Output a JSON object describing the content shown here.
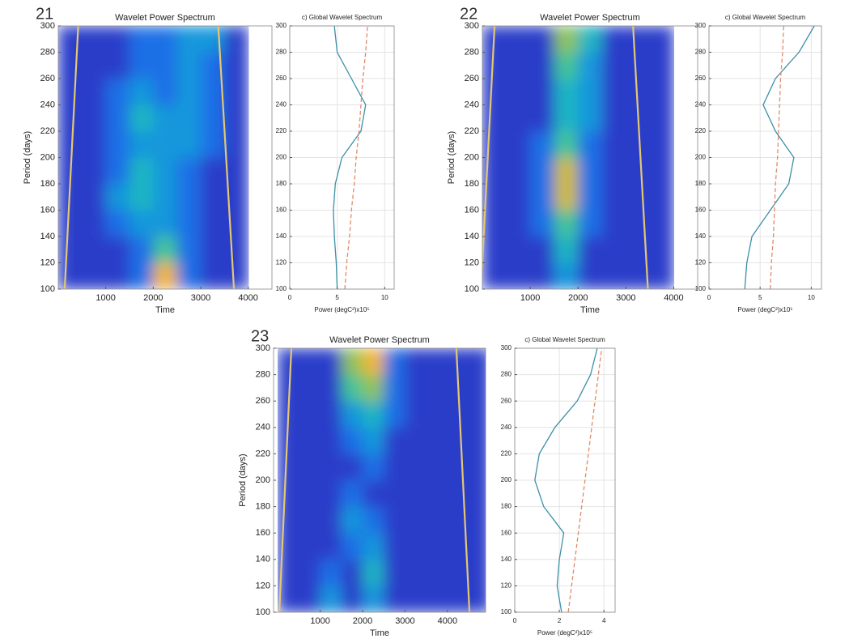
{
  "chart_data": [
    {
      "type": "heatmap",
      "panel_label": "21",
      "title": "Wavelet Power Spectrum",
      "xlabel": "Time",
      "ylabel": "Period (days)",
      "xlim": [
        0,
        4500
      ],
      "ylim": [
        100,
        300
      ],
      "xticks": [
        1000,
        2000,
        3000,
        4000
      ],
      "yticks": [
        100,
        120,
        140,
        160,
        180,
        200,
        220,
        240,
        260,
        280,
        300
      ],
      "zlim": [
        0,
        10
      ],
      "colormap": [
        "#2b1e8c",
        "#2a3cc9",
        "#1e6fe6",
        "#1597dc",
        "#1db5c3",
        "#44c597",
        "#8fc35a",
        "#cfbb36",
        "#f2b62a",
        "#f9a61e",
        "#f57f16"
      ],
      "x": [
        250,
        750,
        1250,
        1750,
        2250,
        2750,
        3250,
        3750,
        4250
      ],
      "y": [
        110,
        130,
        150,
        170,
        190,
        210,
        230,
        250,
        270,
        290
      ],
      "z": [
        [
          1,
          1,
          1,
          2,
          8,
          2,
          1,
          1,
          null
        ],
        [
          1,
          1,
          1,
          2,
          5,
          2,
          1,
          1,
          null
        ],
        [
          1,
          1,
          2,
          3,
          3,
          2,
          1,
          1,
          null
        ],
        [
          1,
          1,
          3,
          4,
          3,
          2,
          1,
          1,
          null
        ],
        [
          1,
          1,
          2,
          4,
          3,
          2,
          1,
          1,
          null
        ],
        [
          1,
          1,
          2,
          3,
          3,
          3,
          2,
          1,
          null
        ],
        [
          1,
          1,
          2,
          4,
          3,
          3,
          2,
          1,
          null
        ],
        [
          1,
          1,
          2,
          3,
          2,
          3,
          2,
          1,
          null
        ],
        [
          1,
          1,
          1,
          2,
          2,
          3,
          2,
          1,
          null
        ],
        [
          1,
          1,
          1,
          2,
          2,
          3,
          3,
          1,
          null
        ]
      ],
      "coi_color": "#e3c773",
      "coi": [
        {
          "x": [
            135,
            420
          ],
          "y": [
            100,
            300
          ]
        },
        {
          "x": [
            3700,
            3370
          ],
          "y": [
            100,
            300
          ]
        }
      ]
    },
    {
      "type": "line",
      "title": "c) Global Wavelet Spectrum",
      "xlabel": "Power (degC²)x10⁵",
      "xlim": [
        0,
        11
      ],
      "ylim": [
        100,
        300
      ],
      "xticks": [
        0,
        5,
        10
      ],
      "yticks": [
        100,
        120,
        140,
        160,
        180,
        200,
        220,
        240,
        260,
        280,
        300
      ],
      "grid": true,
      "y": [
        100,
        120,
        140,
        160,
        180,
        200,
        220,
        240,
        260,
        280,
        300
      ],
      "series": [
        {
          "color": "#3d8fa8",
          "style": "solid",
          "values": [
            5.0,
            4.9,
            4.7,
            4.6,
            4.8,
            5.5,
            7.5,
            8.0,
            6.5,
            5.0,
            4.7
          ]
        },
        {
          "color": "#e08a6a",
          "style": "dashed",
          "values": [
            5.8,
            6.0,
            6.3,
            6.5,
            6.8,
            7.0,
            7.3,
            7.5,
            7.7,
            8.0,
            8.2
          ]
        }
      ]
    },
    {
      "type": "heatmap",
      "panel_label": "22",
      "title": "Wavelet Power Spectrum",
      "xlabel": "Time",
      "ylabel": "Period (days)",
      "xlim": [
        0,
        4500
      ],
      "ylim": [
        100,
        300
      ],
      "xticks": [
        1000,
        2000,
        3000,
        4000
      ],
      "yticks": [
        100,
        120,
        140,
        160,
        180,
        200,
        220,
        240,
        260,
        280,
        300
      ],
      "zlim": [
        0,
        10
      ],
      "colormap": [
        "#2b1e8c",
        "#2a3cc9",
        "#1e6fe6",
        "#1597dc",
        "#1db5c3",
        "#44c597",
        "#8fc35a",
        "#cfbb36",
        "#f2b62a",
        "#f9a61e",
        "#f57f16"
      ],
      "x": [
        250,
        750,
        1250,
        1750,
        2250,
        2750,
        3250,
        3750,
        4250
      ],
      "y": [
        110,
        130,
        150,
        170,
        190,
        210,
        230,
        250,
        270,
        290
      ],
      "z": [
        [
          1,
          1,
          1,
          3,
          1,
          1,
          1,
          1,
          null
        ],
        [
          1,
          1,
          1,
          4,
          1,
          1,
          1,
          1,
          null
        ],
        [
          1,
          1,
          2,
          5,
          2,
          1,
          1,
          1,
          null
        ],
        [
          1,
          1,
          2,
          7,
          2,
          1,
          1,
          1,
          null
        ],
        [
          1,
          1,
          2,
          7,
          2,
          1,
          1,
          1,
          null
        ],
        [
          1,
          1,
          2,
          5,
          2,
          1,
          1,
          1,
          null
        ],
        [
          1,
          1,
          1,
          4,
          3,
          1,
          1,
          1,
          null
        ],
        [
          1,
          1,
          1,
          4,
          3,
          1,
          1,
          1,
          null
        ],
        [
          1,
          1,
          1,
          5,
          3,
          1,
          1,
          1,
          null
        ],
        [
          1,
          1,
          1,
          6,
          4,
          1,
          1,
          1,
          null
        ]
      ],
      "coi_color": "#e3c773",
      "coi": [
        {
          "x": [
            -30,
            255
          ],
          "y": [
            100,
            300
          ]
        },
        {
          "x": [
            3460,
            3150
          ],
          "y": [
            100,
            300
          ]
        }
      ]
    },
    {
      "type": "line",
      "title": "c) Global Wavelet Spectrum",
      "xlabel": "Power (degC²)x10⁵",
      "xlim": [
        0,
        11
      ],
      "ylim": [
        100,
        300
      ],
      "xticks": [
        0,
        5,
        10
      ],
      "yticks": [
        100,
        120,
        140,
        160,
        180,
        200,
        220,
        240,
        260,
        280,
        300
      ],
      "grid": true,
      "y": [
        100,
        120,
        140,
        160,
        180,
        200,
        220,
        240,
        260,
        280,
        300
      ],
      "series": [
        {
          "color": "#3d8fa8",
          "style": "solid",
          "values": [
            3.5,
            3.7,
            4.2,
            6.0,
            7.8,
            8.3,
            6.5,
            5.3,
            6.5,
            8.8,
            10.3
          ]
        },
        {
          "color": "#e08a6a",
          "style": "dashed",
          "values": [
            6.0,
            6.1,
            6.3,
            6.4,
            6.5,
            6.7,
            6.8,
            6.9,
            7.0,
            7.2,
            7.3
          ]
        }
      ]
    },
    {
      "type": "heatmap",
      "panel_label": "23",
      "title": "Wavelet Power Spectrum",
      "xlabel": "Time",
      "ylabel": "Period (days)",
      "xlim": [
        -100,
        4900
      ],
      "ylim": [
        100,
        300
      ],
      "xticks": [
        1000,
        2000,
        3000,
        4000
      ],
      "yticks": [
        100,
        120,
        140,
        160,
        180,
        200,
        220,
        240,
        260,
        280,
        300
      ],
      "zlim": [
        0,
        10
      ],
      "colormap": [
        "#2b1e8c",
        "#2a3cc9",
        "#1e6fe6",
        "#1597dc",
        "#1db5c3",
        "#44c597",
        "#8fc35a",
        "#cfbb36",
        "#f2b62a",
        "#f9a61e",
        "#f57f16"
      ],
      "x": [
        250,
        750,
        1250,
        1750,
        2250,
        2750,
        3250,
        3750,
        4250,
        4750
      ],
      "y": [
        110,
        130,
        150,
        170,
        190,
        210,
        230,
        250,
        270,
        290
      ],
      "z": [
        [
          1,
          1,
          3,
          1,
          3,
          1,
          1,
          1,
          1,
          1
        ],
        [
          1,
          1,
          2,
          1,
          4,
          1,
          1,
          1,
          1,
          1
        ],
        [
          1,
          1,
          1,
          2,
          3,
          1,
          1,
          1,
          1,
          1
        ],
        [
          1,
          1,
          1,
          3,
          2,
          1,
          1,
          1,
          1,
          1
        ],
        [
          1,
          1,
          1,
          2,
          1,
          1,
          1,
          1,
          1,
          1
        ],
        [
          1,
          1,
          1,
          1,
          2,
          1,
          1,
          1,
          1,
          1
        ],
        [
          1,
          1,
          1,
          2,
          3,
          1,
          1,
          1,
          1,
          1
        ],
        [
          1,
          1,
          1,
          3,
          4,
          2,
          1,
          1,
          1,
          1
        ],
        [
          1,
          1,
          1,
          5,
          6,
          2,
          1,
          1,
          1,
          1
        ],
        [
          1,
          1,
          1,
          6,
          8,
          2,
          1,
          1,
          1,
          1
        ]
      ],
      "coi_color": "#e3c773",
      "coi": [
        {
          "x": [
            35,
            320
          ],
          "y": [
            100,
            300
          ]
        },
        {
          "x": [
            4520,
            4210
          ],
          "y": [
            100,
            300
          ]
        }
      ]
    },
    {
      "type": "line",
      "title": "c) Global Wavelet Spectrum",
      "xlabel": "Power (degC²)x10⁵",
      "xlim": [
        0,
        4.5
      ],
      "ylim": [
        100,
        300
      ],
      "xticks": [
        0,
        2,
        4
      ],
      "yticks": [
        100,
        120,
        140,
        160,
        180,
        200,
        220,
        240,
        260,
        280,
        300
      ],
      "grid": true,
      "y": [
        100,
        120,
        140,
        160,
        180,
        200,
        220,
        240,
        260,
        280,
        300
      ],
      "series": [
        {
          "color": "#3d8fa8",
          "style": "solid",
          "values": [
            2.1,
            1.9,
            2.0,
            2.2,
            1.3,
            0.9,
            1.1,
            1.8,
            2.8,
            3.4,
            3.7
          ]
        },
        {
          "color": "#e08a6a",
          "style": "dashed",
          "values": [
            2.4,
            2.55,
            2.7,
            2.85,
            3.0,
            3.15,
            3.3,
            3.45,
            3.6,
            3.75,
            3.9
          ]
        }
      ]
    }
  ]
}
